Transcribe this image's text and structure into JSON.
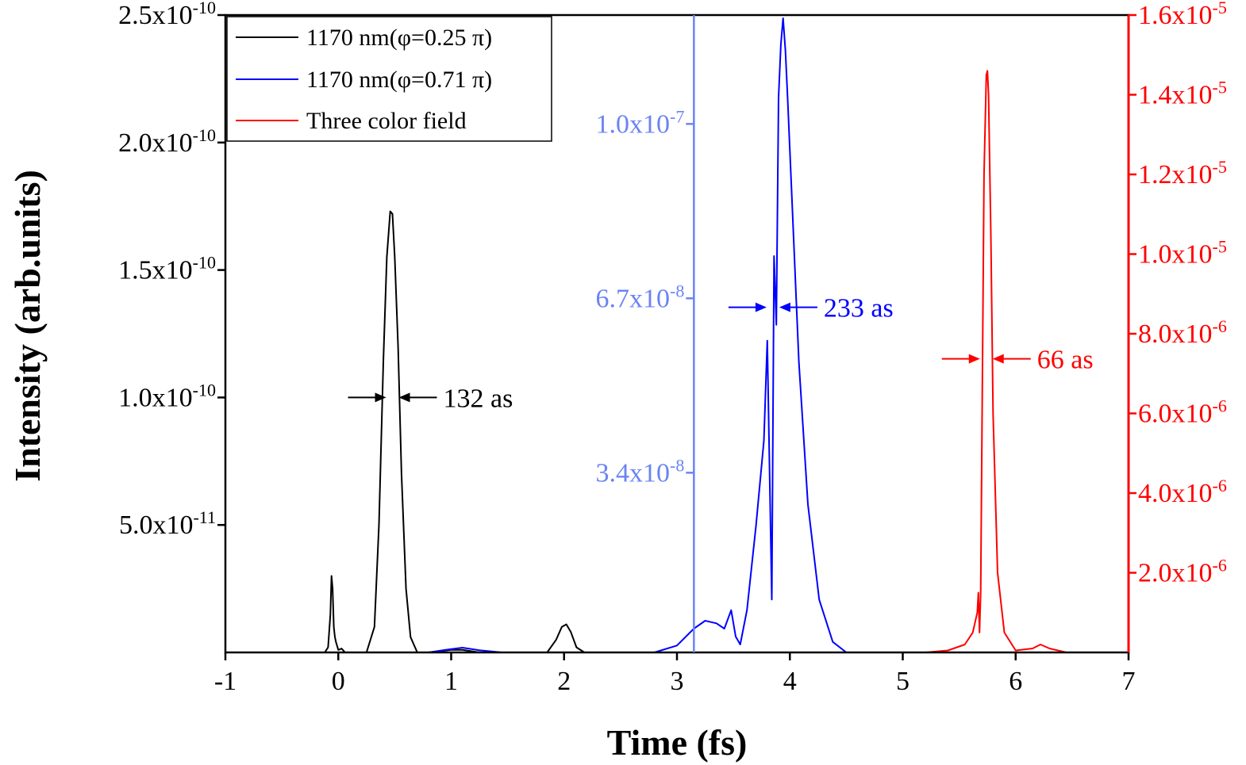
{
  "chart_data": {
    "type": "line",
    "xlabel": "Time (fs)",
    "ylabel": "Intensity (arb.units)",
    "xlim": [
      -1,
      7
    ],
    "x_ticks": [
      "-1",
      "0",
      "1",
      "2",
      "3",
      "4",
      "5",
      "6",
      "7"
    ],
    "grid": false,
    "legend_position": "top-left",
    "axes": {
      "left": {
        "ylim": [
          0,
          2.5e-10
        ],
        "ticks": [
          {
            "value": 5e-11,
            "mantissa": "5.0x10",
            "exp": "-11"
          },
          {
            "value": 1e-10,
            "mantissa": "1.0x10",
            "exp": "-10"
          },
          {
            "value": 1.5e-10,
            "mantissa": "1.5x10",
            "exp": "-10"
          },
          {
            "value": 2e-10,
            "mantissa": "2.0x10",
            "exp": "-10"
          },
          {
            "value": 2.5e-10,
            "mantissa": "2.5x10",
            "exp": "-10"
          }
        ],
        "color": "#000000"
      },
      "middle": {
        "x_position": 3.15,
        "ylim": [
          0,
          1.206e-07
        ],
        "ticks": [
          {
            "value": 3.4e-08,
            "mantissa": "3.4x10",
            "exp": "-8"
          },
          {
            "value": 6.7e-08,
            "mantissa": "6.7x10",
            "exp": "-8"
          },
          {
            "value": 1e-07,
            "mantissa": "1.0x10",
            "exp": "-7"
          }
        ],
        "color": "#6b84f2"
      },
      "right": {
        "ylim": [
          0,
          1.6e-05
        ],
        "ticks": [
          {
            "value": 2e-06,
            "mantissa": "2.0x10",
            "exp": "-6"
          },
          {
            "value": 4e-06,
            "mantissa": "4.0x10",
            "exp": "-6"
          },
          {
            "value": 6e-06,
            "mantissa": "6.0x10",
            "exp": "-6"
          },
          {
            "value": 8e-06,
            "mantissa": "8.0x10",
            "exp": "-6"
          },
          {
            "value": 1e-05,
            "mantissa": "1.0x10",
            "exp": "-5"
          },
          {
            "value": 1.2e-05,
            "mantissa": "1.2x10",
            "exp": "-5"
          },
          {
            "value": 1.4e-05,
            "mantissa": "1.4x10",
            "exp": "-5"
          },
          {
            "value": 1.6e-05,
            "mantissa": "1.6x10",
            "exp": "-5"
          }
        ],
        "color": "#ff0000"
      }
    },
    "series": [
      {
        "name": "1170 nm(φ=0.25 π)",
        "color": "#000000",
        "axis": "left",
        "x": [
          -1.0,
          -0.12,
          -0.09,
          -0.07,
          -0.06,
          -0.05,
          -0.04,
          -0.03,
          -0.02,
          0.0,
          0.03,
          0.06,
          0.25,
          0.32,
          0.36,
          0.4,
          0.43,
          0.46,
          0.48,
          0.5,
          0.53,
          0.56,
          0.6,
          0.64,
          0.7,
          0.8,
          1.0,
          1.1,
          1.25,
          1.4,
          1.85,
          1.93,
          1.98,
          2.02,
          2.06,
          2.11,
          2.18,
          7.0
        ],
        "y": [
          0,
          0,
          2e-12,
          1.5e-11,
          3e-11,
          2.5e-11,
          1e-11,
          6e-12,
          4e-12,
          1e-12,
          1.5e-12,
          0,
          0,
          1e-11,
          5e-11,
          1.15e-10,
          1.55e-10,
          1.73e-10,
          1.72e-10,
          1.55e-10,
          1.2e-10,
          7e-11,
          2.5e-11,
          6e-12,
          0,
          0,
          1e-12,
          1e-12,
          0,
          0,
          0,
          5e-12,
          1e-11,
          1.1e-11,
          8e-12,
          2e-12,
          0,
          0
        ]
      },
      {
        "name": "1170 nm(φ=0.71 π)",
        "color": "#0000ff",
        "axis": "middle",
        "x": [
          -1.0,
          0.8,
          0.95,
          1.1,
          1.25,
          1.45,
          2.8,
          3.0,
          3.15,
          3.25,
          3.35,
          3.42,
          3.48,
          3.52,
          3.56,
          3.62,
          3.7,
          3.77,
          3.8,
          3.82,
          3.84,
          3.86,
          3.88,
          3.9,
          3.92,
          3.94,
          3.96,
          3.98,
          4.02,
          4.08,
          4.16,
          4.26,
          4.38,
          4.5,
          7.0
        ],
        "y": [
          0,
          0,
          5e-10,
          9e-10,
          4e-10,
          0,
          0,
          1.3e-09,
          4.5e-09,
          6e-09,
          5.5e-09,
          4.5e-09,
          8e-09,
          3e-09,
          1.5e-09,
          8e-09,
          2.4e-08,
          4e-08,
          5.9e-08,
          3.5e-08,
          1e-08,
          7.5e-08,
          6.2e-08,
          1.05e-07,
          1.15e-07,
          1.2e-07,
          1.14e-07,
          1.05e-07,
          8.5e-08,
          5.5e-08,
          2.8e-08,
          1e-08,
          2e-09,
          0,
          0
        ]
      },
      {
        "name": "Three color field",
        "color": "#ff0000",
        "axis": "right",
        "x": [
          -1.0,
          5.2,
          5.4,
          5.55,
          5.62,
          5.66,
          5.67,
          5.68,
          5.69,
          5.7,
          5.72,
          5.74,
          5.75,
          5.76,
          5.78,
          5.8,
          5.84,
          5.9,
          6.0,
          6.15,
          6.22,
          6.3,
          6.45,
          7.0
        ],
        "y": [
          0,
          0,
          5e-08,
          2e-07,
          5e-07,
          1e-06,
          1.5e-06,
          5e-07,
          1.5e-06,
          5e-06,
          1.2e-05,
          1.45e-05,
          1.46e-05,
          1.4e-05,
          1.05e-05,
          6e-06,
          2e-06,
          5e-07,
          5e-08,
          1e-07,
          2e-07,
          1e-07,
          0,
          0
        ]
      }
    ],
    "annotations": [
      {
        "text": "132 as",
        "color": "#000000",
        "at": [
          0.48,
          1e-10
        ],
        "axis": "left",
        "arrow_from": [
          0.02,
          0.61
        ]
      },
      {
        "text": "233 as",
        "color": "#0000ff",
        "at": [
          3.85,
          6.53e-08
        ],
        "axis": "middle",
        "arrow_from": [
          3.35,
          4.0
        ]
      },
      {
        "text": "66 as",
        "color": "#ff0000",
        "at": [
          5.74,
          7.37e-06
        ],
        "axis": "right",
        "arrow_from": [
          5.4,
          5.88
        ]
      }
    ]
  }
}
